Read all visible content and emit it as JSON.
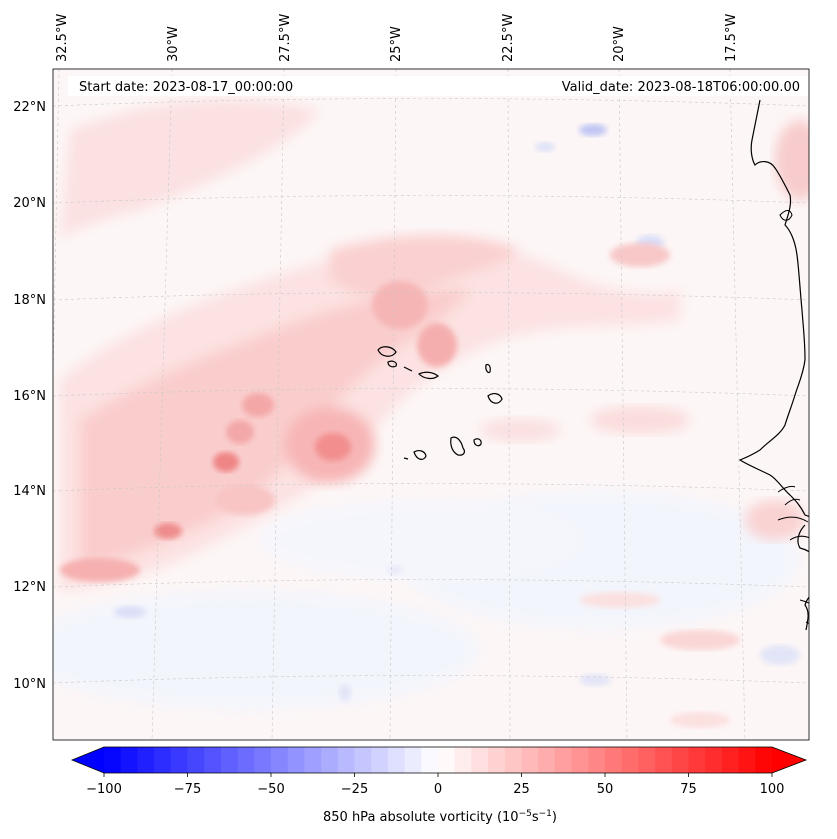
{
  "header": {
    "start_date": "Start date: 2023-08-17_00:00:00",
    "valid_date": "Valid_date: 2023-08-18T06:00:00.00"
  },
  "longitude_labels": [
    "32.5°W",
    "30°W",
    "27.5°W",
    "25°W",
    "22.5°W",
    "20°W",
    "17.5°W"
  ],
  "latitude_labels": [
    "22°N",
    "20°N",
    "18°N",
    "16°N",
    "14°N",
    "12°N",
    "10°N"
  ],
  "colorbar": {
    "ticks": [
      "−100",
      "−75",
      "−50",
      "−25",
      "0",
      "25",
      "50",
      "75",
      "100"
    ],
    "title": "850 hPa absolute vorticity (10",
    "title_exp1": "−5",
    "title_mid": "s",
    "title_exp2": "−1",
    "title_end": ")",
    "min": -100,
    "max": 100,
    "levels": 41,
    "colormap": "bwr",
    "negative_color": "#0000ff",
    "positive_color": "#ff0000"
  }
}
